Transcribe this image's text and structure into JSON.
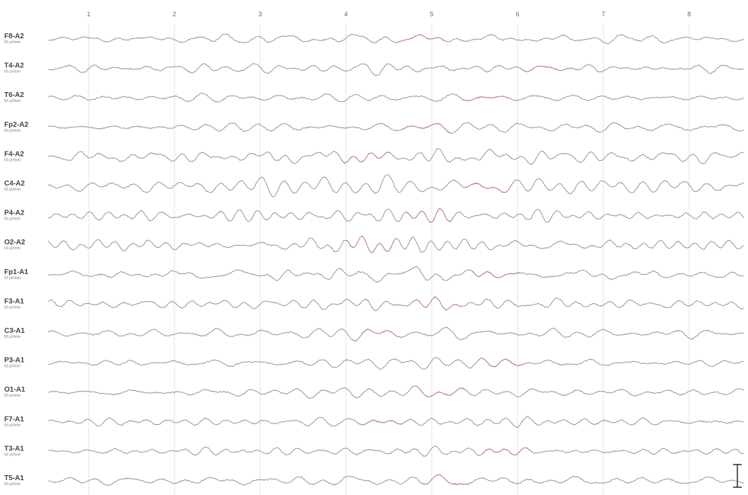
{
  "chart_data": {
    "type": "line",
    "title": "",
    "xlabel": "",
    "ylabel": "",
    "x_ticks": [
      "1",
      "2",
      "3",
      "4",
      "5",
      "6",
      "7",
      "8"
    ],
    "channels": [
      {
        "name": "F8-A2",
        "sensitivity": "50 µV/mm"
      },
      {
        "name": "T4-A2",
        "sensitivity": "50 µV/mm"
      },
      {
        "name": "T6-A2",
        "sensitivity": "50 µV/mm"
      },
      {
        "name": "Fp2-A2",
        "sensitivity": "50 µV/mm"
      },
      {
        "name": "F4-A2",
        "sensitivity": "50 µV/mm"
      },
      {
        "name": "C4-A2",
        "sensitivity": "50 µV/mm"
      },
      {
        "name": "P4-A2",
        "sensitivity": "50 µV/mm"
      },
      {
        "name": "O2-A2",
        "sensitivity": "50 µV/mm"
      },
      {
        "name": "Fp1-A1",
        "sensitivity": "50 µV/mm"
      },
      {
        "name": "F3-A1",
        "sensitivity": "50 µV/mm"
      },
      {
        "name": "C3-A1",
        "sensitivity": "50 µV/mm"
      },
      {
        "name": "P3-A1",
        "sensitivity": "50 µV/mm"
      },
      {
        "name": "O1-A1",
        "sensitivity": "50 µV/mm"
      },
      {
        "name": "F7-A1",
        "sensitivity": "50 µV/mm"
      },
      {
        "name": "T3-A1",
        "sensitivity": "50 µV/mm"
      },
      {
        "name": "T5-A1",
        "sensitivity": "50 µV/mm"
      }
    ],
    "colors": {
      "trace": "#8a8a8a",
      "trace_accent": "#d66a78",
      "grid": "#dcdcdc",
      "label": "#444444",
      "scale_bar": "#333333"
    },
    "grid": true,
    "legend": "none"
  }
}
